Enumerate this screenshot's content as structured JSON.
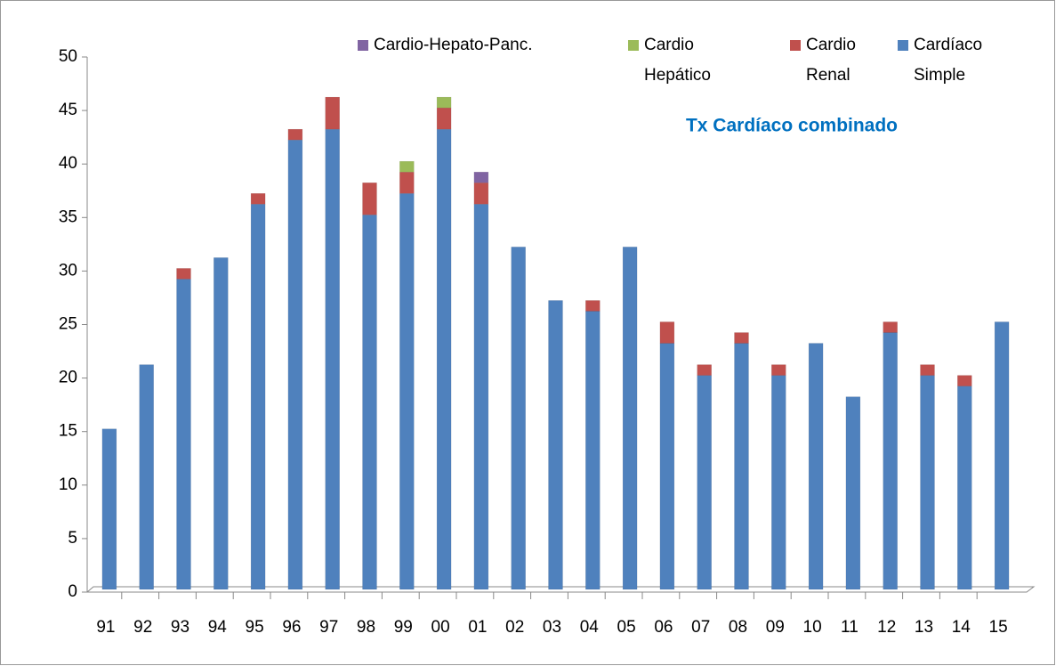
{
  "chart_data": {
    "type": "stacked_bar",
    "title": "Tx Cardíaco combinado",
    "categories": [
      "91",
      "92",
      "93",
      "94",
      "95",
      "96",
      "97",
      "98",
      "99",
      "00",
      "01",
      "02",
      "03",
      "04",
      "05",
      "06",
      "07",
      "08",
      "09",
      "10",
      "11",
      "12",
      "13",
      "14",
      "15"
    ],
    "series": [
      {
        "name": "Cardio-Hepato-Panc.",
        "color": "#8064a2",
        "values": [
          0,
          0,
          0,
          0,
          0,
          0,
          0,
          0,
          0,
          0,
          1,
          0,
          0,
          0,
          0,
          0,
          0,
          0,
          0,
          0,
          0,
          0,
          0,
          0,
          0
        ]
      },
      {
        "name": "Cardio Hepático",
        "color": "#9bbb59",
        "values": [
          0,
          0,
          0,
          0,
          0,
          0,
          0,
          0,
          1,
          1,
          0,
          0,
          0,
          0,
          0,
          0,
          0,
          0,
          0,
          0,
          0,
          0,
          0,
          0,
          0
        ]
      },
      {
        "name": "Cardio Renal",
        "color": "#c0504d",
        "values": [
          0,
          0,
          1,
          0,
          1,
          1,
          3,
          3,
          2,
          2,
          2,
          0,
          0,
          1,
          0,
          2,
          1,
          1,
          1,
          0,
          0,
          1,
          1,
          1,
          0
        ]
      },
      {
        "name": "Cardíaco Simple",
        "color": "#4f81bd",
        "values": [
          15,
          21,
          29,
          31,
          36,
          42,
          43,
          35,
          37,
          43,
          36,
          32,
          27,
          26,
          32,
          23,
          20,
          23,
          20,
          23,
          18,
          24,
          20,
          19,
          25
        ]
      }
    ],
    "ylim": [
      0,
      50
    ],
    "yticks": [
      0,
      5,
      10,
      15,
      20,
      25,
      30,
      35,
      40,
      45,
      50
    ],
    "legend": "top"
  }
}
